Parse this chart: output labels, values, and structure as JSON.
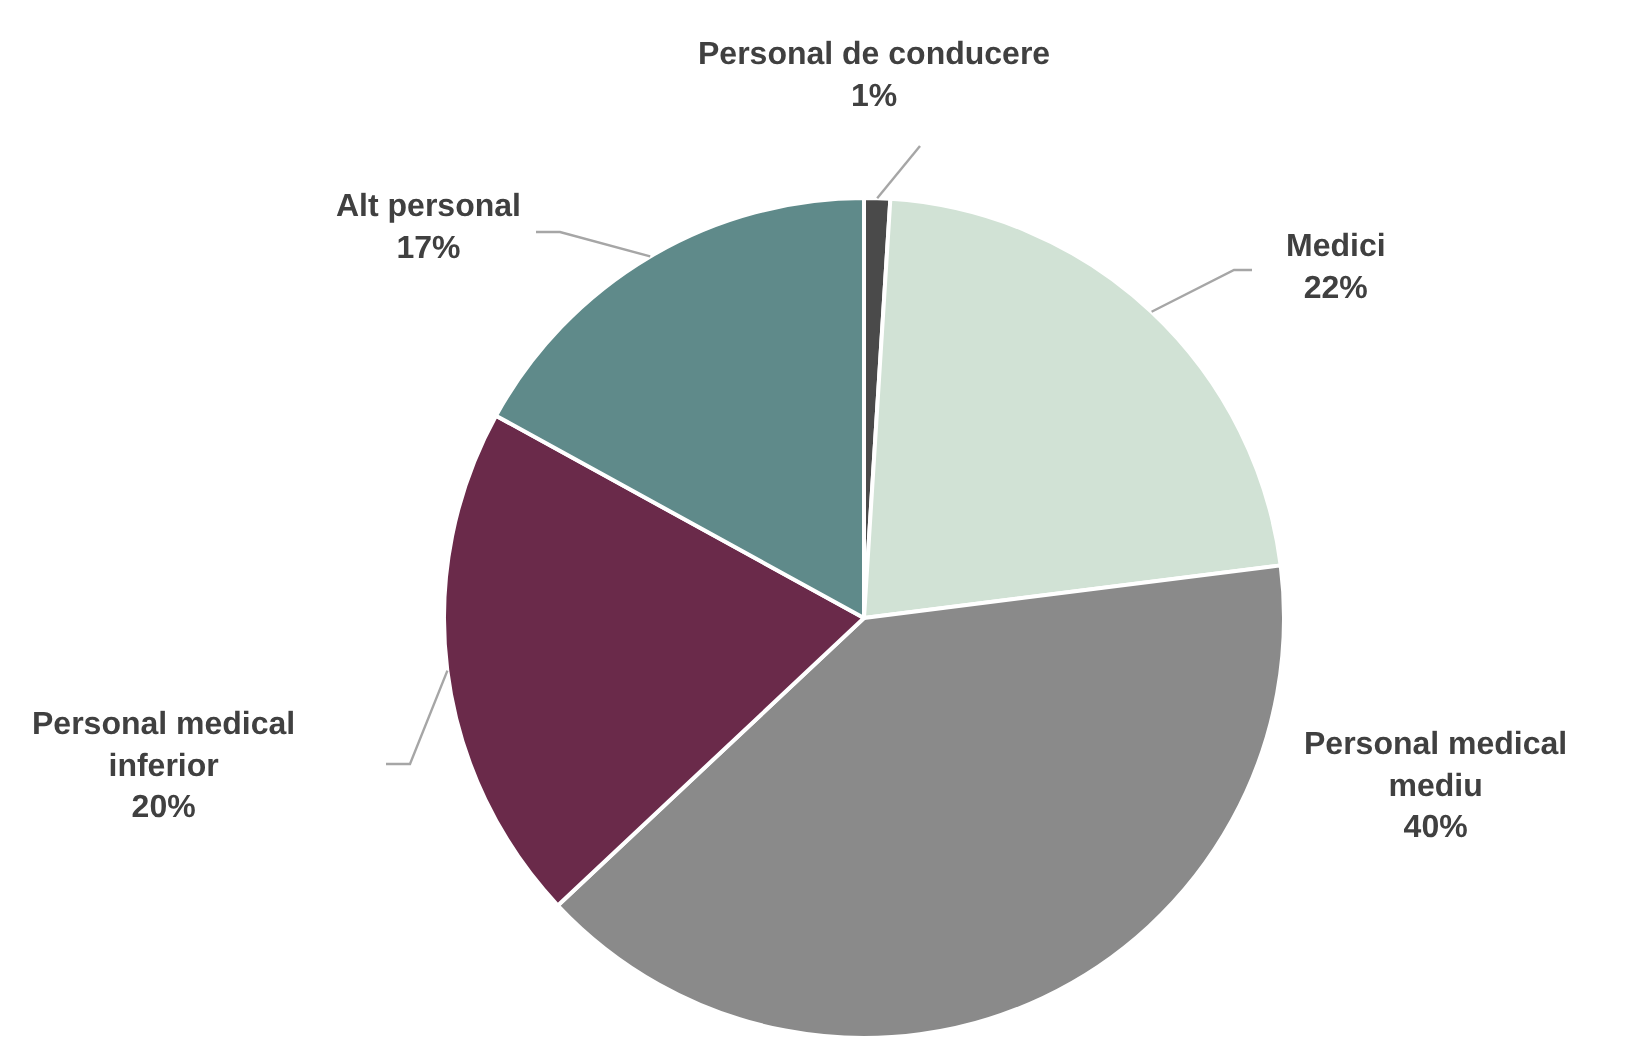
{
  "chart_data": {
    "type": "pie",
    "categories": [
      "Personal de conducere",
      "Medici",
      "Personal medical mediu",
      "Personal medical inferior",
      "Alt personal"
    ],
    "values": [
      1,
      22,
      40,
      20,
      17
    ],
    "colors": [
      "#4a4a4a",
      "#d1e2d5",
      "#8a8a8a",
      "#6a2a4a",
      "#5f8a8a"
    ],
    "value_labels": [
      "1%",
      "22%",
      "40%",
      "20%",
      "17%"
    ]
  }
}
